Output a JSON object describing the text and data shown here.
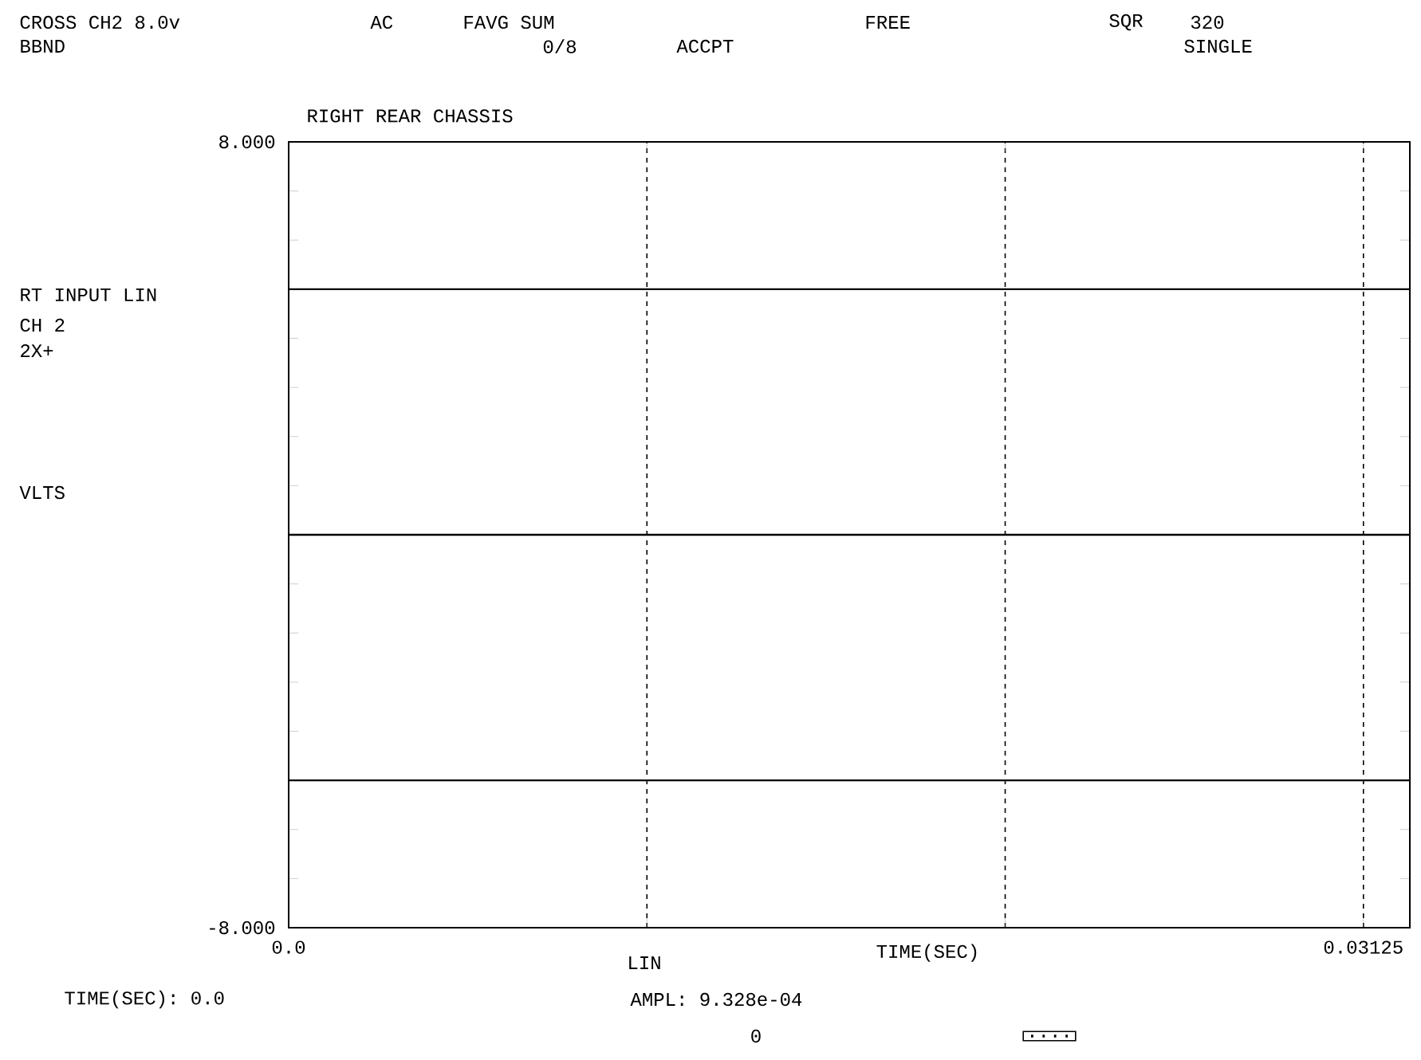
{
  "chart_data": {
    "type": "line",
    "title": "RIGHT REAR CHASSIS",
    "xlabel": "TIME(SEC)",
    "annotations": [
      "CROSS CH2 8.0v",
      "AC",
      "FAVG SUM",
      "FREE",
      "SQR",
      "320",
      "BBND",
      "0/8",
      "ACCPT",
      "SINGLE",
      "RT INPUT LIN",
      "CH 2",
      "2X+",
      "VLTS",
      "LIN",
      "TIME(SEC): 0.0",
      "AMPL: 9.328e-04",
      "0",
      "...."
    ],
    "series": [
      {
        "color": "#000000",
        "x": [
          0,
          0.0326
        ],
        "values": [
          0,
          0
        ]
      }
    ],
    "xlim": [
      0,
      0.0326
    ],
    "xticks": [
      {
        "value": 0,
        "label": "0.0"
      },
      {
        "value": 0.0104167,
        "label": null
      },
      {
        "value": 0.0208333,
        "label": null
      },
      0.03125
    ],
    "ylim": [
      -8,
      8
    ],
    "yticks": [
      {
        "value": -8,
        "label": "-8.000"
      },
      {
        "value": -7,
        "label": null
      },
      {
        "value": -6,
        "label": null
      },
      {
        "value": -5,
        "label": null
      },
      {
        "value": -4,
        "label": null
      },
      {
        "value": -3,
        "label": null
      },
      {
        "value": -2,
        "label": null
      },
      {
        "value": -1,
        "label": null
      },
      {
        "value": 0,
        "label": null
      },
      {
        "value": 1,
        "label": null
      },
      {
        "value": 2,
        "label": null
      },
      {
        "value": 3,
        "label": null
      },
      {
        "value": 4,
        "label": null
      },
      {
        "value": 5,
        "label": null
      },
      {
        "value": 6,
        "label": null
      },
      {
        "value": 7,
        "label": null
      },
      {
        "value": 8,
        "label": "8.000"
      }
    ],
    "ref_lines": [
      {
        "axis": "y",
        "value": 5,
        "color": "#000000"
      },
      {
        "axis": "y",
        "value": -5,
        "color": "#000000"
      }
    ],
    "grid": "x",
    "legend": false,
    "marker": "none",
    "line_style": "solid"
  }
}
